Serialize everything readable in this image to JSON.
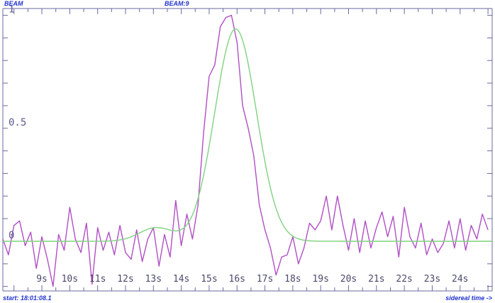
{
  "header": {
    "left_label": "BEAM",
    "center_label": "BEAM:9",
    "start_label": "start: 18:01:08.1",
    "axis_note": "sidereal time ->"
  },
  "chart_data": {
    "type": "line",
    "title": "",
    "xlabel": "sidereal time ->",
    "ylabel": "",
    "xlim": [
      7.6,
      25.15
    ],
    "ylim": [
      -0.22,
      1.03
    ],
    "x_ticks": [
      "9s",
      "10s",
      "11s",
      "12s",
      "13s",
      "14s",
      "15s",
      "16s",
      "17s",
      "18s",
      "19s",
      "20s",
      "21s",
      "22s",
      "23s",
      "24s"
    ],
    "x_tick_values": [
      9,
      10,
      11,
      12,
      13,
      14,
      15,
      16,
      17,
      18,
      19,
      20,
      21,
      22,
      23,
      24
    ],
    "y_tick_labels": [
      {
        "value": 0,
        "label": "0"
      },
      {
        "value": 0.5,
        "label": "0.5"
      },
      {
        "value": 1,
        "label": "1"
      }
    ],
    "grid": false,
    "series": [
      {
        "kind": "measured",
        "color": "#b04fc4",
        "x": [
          7.6,
          7.8,
          8.0,
          8.2,
          8.4,
          8.6,
          8.8,
          9.0,
          9.2,
          9.4,
          9.6,
          9.8,
          10.0,
          10.2,
          10.4,
          10.6,
          10.8,
          11.0,
          11.2,
          11.4,
          11.6,
          11.8,
          12.0,
          12.2,
          12.4,
          12.6,
          12.8,
          13.0,
          13.2,
          13.4,
          13.6,
          13.8,
          14.0,
          14.2,
          14.4,
          14.6,
          14.8,
          15.0,
          15.2,
          15.4,
          15.6,
          15.8,
          16.0,
          16.2,
          16.4,
          16.6,
          16.8,
          17.0,
          17.2,
          17.4,
          17.6,
          17.8,
          18.0,
          18.2,
          18.4,
          18.6,
          18.8,
          19.0,
          19.2,
          19.4,
          19.6,
          19.8,
          20.0,
          20.2,
          20.4,
          20.6,
          20.8,
          21.0,
          21.2,
          21.4,
          21.6,
          21.8,
          22.0,
          22.2,
          22.4,
          22.6,
          22.8,
          23.0,
          23.2,
          23.4,
          23.6,
          23.8,
          24.0,
          24.2,
          24.4,
          24.6,
          24.8,
          25.0
        ],
        "y": [
          0.01,
          -0.06,
          0.07,
          0.09,
          -0.02,
          0.04,
          -0.12,
          0.02,
          -0.08,
          -0.2,
          0.03,
          -0.04,
          0.15,
          0.01,
          -0.05,
          0.08,
          -0.19,
          0.06,
          -0.04,
          0.04,
          -0.06,
          0.07,
          -0.05,
          -0.08,
          0.05,
          -0.09,
          0.01,
          0.06,
          -0.11,
          0.03,
          -0.07,
          0.18,
          -0.02,
          0.12,
          0.01,
          0.16,
          0.48,
          0.73,
          0.78,
          0.95,
          0.99,
          1.0,
          0.88,
          0.6,
          0.5,
          0.38,
          0.16,
          0.05,
          -0.03,
          -0.15,
          -0.07,
          -0.06,
          0.02,
          -0.1,
          -0.03,
          0.08,
          0.05,
          0.09,
          0.2,
          0.05,
          0.2,
          0.07,
          -0.04,
          0.1,
          -0.05,
          0.09,
          -0.03,
          0.06,
          0.13,
          0.02,
          0.11,
          -0.07,
          0.15,
          0.02,
          -0.03,
          0.08,
          -0.06,
          0.01,
          -0.05,
          -0.01,
          0.09,
          -0.03,
          0.1,
          -0.04,
          0.07,
          0.01,
          0.12,
          0.05
        ]
      },
      {
        "kind": "fit",
        "color": "#7fd27f",
        "function": "gaussian",
        "amplitude": 0.94,
        "center": 15.95,
        "sigma": 0.75,
        "baseline": 0.0,
        "bump_amplitude": 0.06,
        "bump_center": 13.1,
        "bump_sigma": 0.6
      }
    ]
  }
}
